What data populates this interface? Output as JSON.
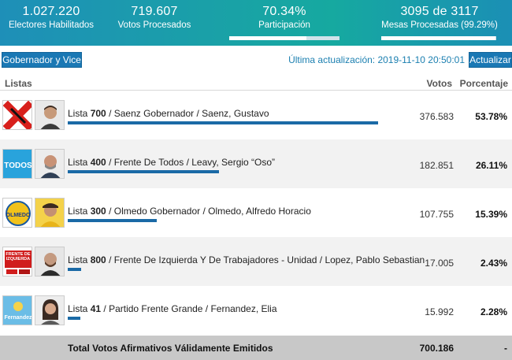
{
  "stats": {
    "electores": {
      "value": "1.027.220",
      "label": "Electores Habilitados"
    },
    "votos": {
      "value": "719.607",
      "label": "Votos Procesados"
    },
    "participacion": {
      "value": "70.34%",
      "label": "Participación",
      "progress": 70.34
    },
    "mesas": {
      "value": "3095 de 3117",
      "label": "Mesas Procesadas (99.29%)",
      "progress": 99.29
    }
  },
  "toolbar": {
    "category_button": "Gobernador y Vice",
    "last_update": "Última actualización: 2019-11-10 20:50:01",
    "refresh_button": "Actualizar"
  },
  "columns": {
    "listas": "Listas",
    "votos": "Votos",
    "porcentaje": "Porcentaje"
  },
  "rows": [
    {
      "lista_word": "Lista",
      "number": "700",
      "rest": " / Saenz Gobernador / Saenz, Gustavo",
      "votes": "376.583",
      "pct": "53.78%",
      "share": 53.78,
      "logo_icon": "x-party-logo-icon",
      "logo_color": "#d8201c"
    },
    {
      "lista_word": "Lista",
      "number": "400",
      "rest": " / Frente De Todos / Leavy, Sergio “Oso”",
      "votes": "182.851",
      "pct": "26.11%",
      "share": 26.11,
      "logo_icon": "todos-logo-icon",
      "logo_color": "#29a3dc",
      "logo_text": "TODOS"
    },
    {
      "lista_word": "Lista",
      "number": "300",
      "rest": " / Olmedo Gobernador / Olmedo, Alfredo Horacio",
      "votes": "107.755",
      "pct": "15.39%",
      "share": 15.39,
      "logo_icon": "olmedo-logo-icon",
      "logo_color": "#f2c21b",
      "logo_text": "OLMEDO"
    },
    {
      "lista_word": "Lista",
      "number": "800",
      "rest": " / Frente De Izquierda Y De Trabajadores - Unidad / Lopez, Pablo Sebastian",
      "votes": "17.005",
      "pct": "2.43%",
      "share": 2.43,
      "logo_icon": "fit-logo-icon",
      "logo_color": "#d01c1c",
      "logo_text": "FRENTE DE IZQUIERDA"
    },
    {
      "lista_word": "Lista",
      "number": "41",
      "rest": " / Partido Frente Grande / Fernandez, Elia",
      "votes": "15.992",
      "pct": "2.28%",
      "share": 2.28,
      "logo_icon": "fernandez-logo-icon",
      "logo_color": "#6bbde6",
      "logo_text": "Fernandez"
    }
  ],
  "total": {
    "label": "Total Votos Afirmativos Válidamente Emitidos",
    "votes": "700.186",
    "pct": "-"
  }
}
